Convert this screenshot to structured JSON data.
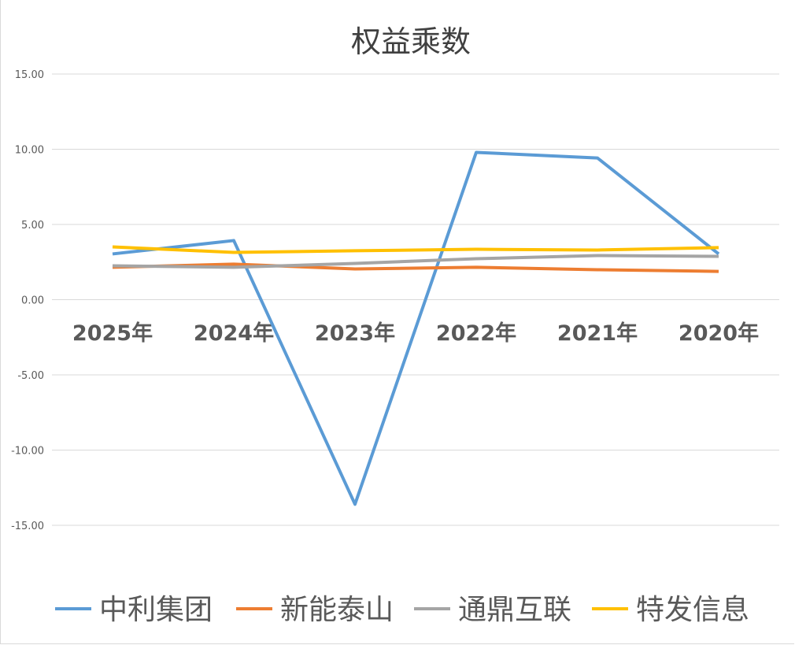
{
  "chart_data": {
    "type": "line",
    "title": "权益乘数",
    "categories": [
      "2025年",
      "2024年",
      "2023年",
      "2022年",
      "2021年",
      "2020年"
    ],
    "ylim": [
      -15,
      15
    ],
    "yticks": [
      "15.00",
      "10.00",
      "5.00",
      "0.00",
      "-5.00",
      "-10.00",
      "-15.00"
    ],
    "ytick_values": [
      15,
      10,
      5,
      0,
      -5,
      -10,
      -15
    ],
    "grid": true,
    "legend_position": "bottom",
    "series": [
      {
        "name": "中利集团",
        "color": "#5b9bd5",
        "values": [
          3.04,
          3.93,
          -13.6,
          9.79,
          9.42,
          3.04
        ]
      },
      {
        "name": "新能泰山",
        "color": "#ed7d31",
        "values": [
          2.15,
          2.36,
          2.04,
          2.15,
          1.99,
          1.88
        ]
      },
      {
        "name": "通鼎互联",
        "color": "#a5a5a5",
        "values": [
          2.25,
          2.15,
          2.41,
          2.72,
          2.93,
          2.88
        ]
      },
      {
        "name": "特发信息",
        "color": "#ffc000",
        "values": [
          3.51,
          3.14,
          3.25,
          3.35,
          3.3,
          3.46
        ]
      }
    ]
  }
}
